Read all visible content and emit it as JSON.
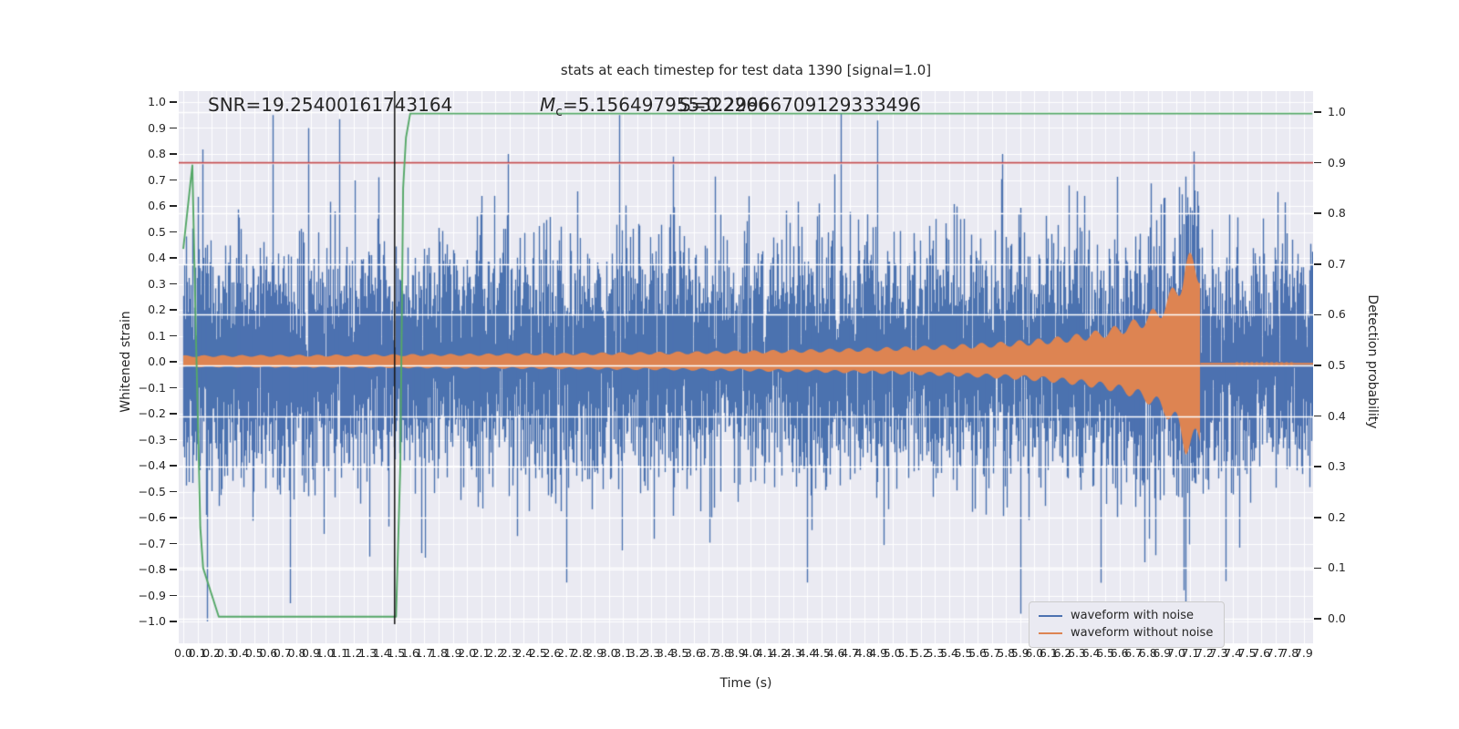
{
  "title": "stats at each timestep for test data 1390 [signal=1.0]",
  "annotations": {
    "snr": "SNR=19.25400161743164",
    "mc_prefix": "M",
    "mc_sub": "c",
    "mc_value": "=5.156497955322266",
    "s": "S=0.29966709129333496"
  },
  "legend": {
    "items": [
      {
        "label": "waveform with noise",
        "color": "#4c72b0"
      },
      {
        "label": "waveform without noise",
        "color": "#dd8452"
      }
    ]
  },
  "colors": {
    "axes_bg": "#eaeaf2",
    "grid": "#ffffff",
    "blue": "#4c72b0",
    "orange": "#dd8452",
    "green": "#55a868",
    "red": "#c44e52",
    "black_line": "#1a1a1a",
    "text": "#262626"
  },
  "chart_data": {
    "type": "line",
    "title": "stats at each timestep for test data 1390 [signal=1.0]",
    "xlabel": "Time (s)",
    "ylabel_left": "Whitened strain",
    "ylabel_right": "Detection probability",
    "xlim": [
      -0.03,
      7.96
    ],
    "ylim_left": [
      -1.08,
      1.04
    ],
    "ylim_right": [
      -0.04,
      1.04
    ],
    "grid": true,
    "legend_position": "lower right",
    "x_ticks": [
      "0.0",
      "0.1",
      "0.2",
      "0.3",
      "0.4",
      "0.5",
      "0.6",
      "0.7",
      "0.8",
      "0.9",
      "1.0",
      "1.1",
      "1.2",
      "1.3",
      "1.4",
      "1.5",
      "1.6",
      "1.7",
      "1.8",
      "1.9",
      "2.0",
      "2.1",
      "2.2",
      "2.3",
      "2.4",
      "2.5",
      "2.6",
      "2.7",
      "2.8",
      "2.9",
      "3.0",
      "3.1",
      "3.2",
      "3.3",
      "3.4",
      "3.5",
      "3.6",
      "3.7",
      "3.8",
      "3.9",
      "4.0",
      "4.1",
      "4.2",
      "4.3",
      "4.4",
      "4.5",
      "4.6",
      "4.7",
      "4.8",
      "4.9",
      "5.0",
      "5.1",
      "5.2",
      "5.3",
      "5.4",
      "5.5",
      "5.6",
      "5.7",
      "5.8",
      "5.9",
      "6.0",
      "6.1",
      "6.2",
      "6.3",
      "6.4",
      "6.5",
      "6.6",
      "6.7",
      "6.8",
      "6.9",
      "7.0",
      "7.1",
      "7.2",
      "7.3",
      "7.4",
      "7.5",
      "7.6",
      "7.7",
      "7.8",
      "7.9"
    ],
    "y_ticks_left": [
      "1.0",
      "0.9",
      "0.8",
      "0.7",
      "0.6",
      "0.5",
      "0.4",
      "0.3",
      "0.2",
      "0.1",
      "0.0",
      "−0.1",
      "−0.2",
      "−0.3",
      "−0.4",
      "−0.5",
      "−0.6",
      "−0.7",
      "−0.8",
      "−0.9",
      "−1.0"
    ],
    "y_ticks_right": [
      "1.0",
      "0.9",
      "0.8",
      "0.7",
      "0.6",
      "0.5",
      "0.4",
      "0.3",
      "0.2",
      "0.1",
      "0.0"
    ],
    "series": [
      {
        "name": "waveform with noise",
        "color": "#4c72b0",
        "kind": "gaussian-noise",
        "sigma": 0.21,
        "samples_per_pixel": 7,
        "heavy_tail_prob": 0.02,
        "heavy_tail_scale": 1.8,
        "clip": [
          -1.0,
          0.96
        ],
        "seed": 20,
        "spikes": [
          [
            0.63,
            0.95
          ],
          [
            0.75,
            -0.93
          ],
          [
            0.88,
            0.9
          ],
          [
            1.31,
            -0.75
          ],
          [
            2.29,
            0.8
          ],
          [
            2.7,
            -0.85
          ],
          [
            3.07,
            0.95
          ],
          [
            3.45,
            0.79
          ],
          [
            4.4,
            -0.85
          ],
          [
            5.77,
            0.8
          ],
          [
            5.9,
            -0.97
          ],
          [
            7.05,
            -0.88
          ],
          [
            7.12,
            0.81
          ]
        ]
      },
      {
        "name": "waveform without noise",
        "color": "#dd8452",
        "kind": "chirp",
        "base_amplitude": 0.025,
        "merger_time": 7.17,
        "envelope_exponent": 0.7,
        "peak_amplitude": 0.42,
        "bottom_asymmetry": 0.85,
        "post_merger_level": -0.008,
        "ringdown_window": [
          7.42,
          7.84
        ]
      },
      {
        "name": "detection probability",
        "color": "#55a868",
        "axis": "right",
        "kind": "keypoints",
        "keypoints": [
          [
            0.0,
            0.73
          ],
          [
            0.064,
            0.895
          ],
          [
            0.09,
            0.55
          ],
          [
            0.12,
            0.18
          ],
          [
            0.14,
            0.1
          ],
          [
            0.25,
            0.004
          ],
          [
            1.5,
            0.004
          ],
          [
            1.53,
            0.3
          ],
          [
            1.55,
            0.85
          ],
          [
            1.57,
            0.95
          ],
          [
            1.6,
            0.997
          ],
          [
            7.96,
            0.997
          ]
        ]
      },
      {
        "name": "detection threshold",
        "color": "#c44e52",
        "axis": "right",
        "kind": "hline",
        "value": 0.9
      },
      {
        "name": "event marker",
        "color": "#1a1a1a",
        "kind": "vline",
        "value": 1.49
      }
    ]
  }
}
